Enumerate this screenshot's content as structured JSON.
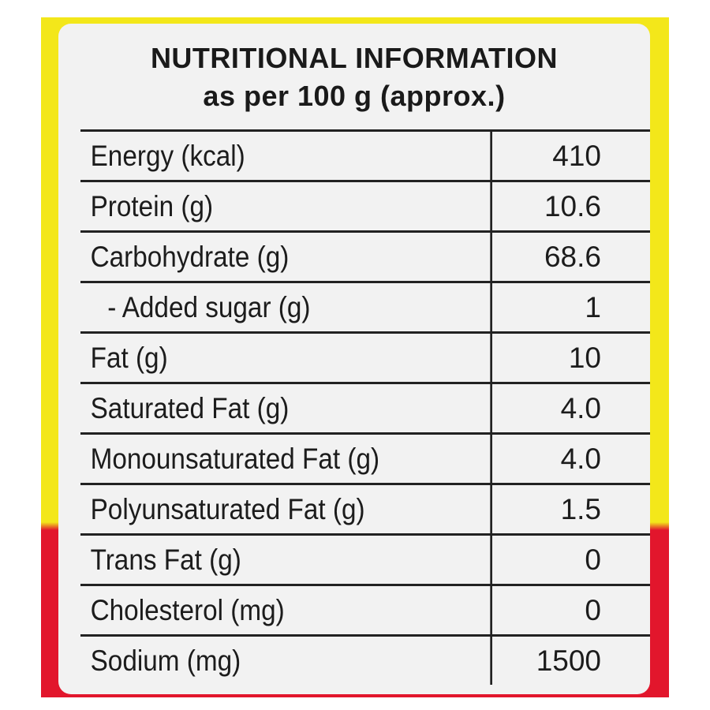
{
  "label": {
    "title_line1": "NUTRITIONAL INFORMATION",
    "title_line2": "as per 100 g (approx.)",
    "rows": [
      {
        "name": "Energy (kcal)",
        "value": "410"
      },
      {
        "name": "Protein (g)",
        "value": "10.6"
      },
      {
        "name": "Carbohydrate (g)",
        "value": "68.6"
      },
      {
        "name": "- Added sugar (g)",
        "value": "1"
      },
      {
        "name": "Fat (g)",
        "value": "10"
      },
      {
        "name": "Saturated Fat (g)",
        "value": "4.0"
      },
      {
        "name": "Monounsaturated Fat (g)",
        "value": "4.0"
      },
      {
        "name": "Polyunsaturated Fat (g)",
        "value": "1.5"
      },
      {
        "name": "Trans Fat (g)",
        "value": "0"
      },
      {
        "name": "Cholesterol (mg)",
        "value": "0"
      },
      {
        "name": "Sodium (mg)",
        "value": "1500"
      }
    ]
  },
  "colors": {
    "package_yellow": "#f3e71a",
    "package_red": "#e2162c",
    "label_background": "#f2f2f2",
    "text": "#1c1c1c"
  }
}
